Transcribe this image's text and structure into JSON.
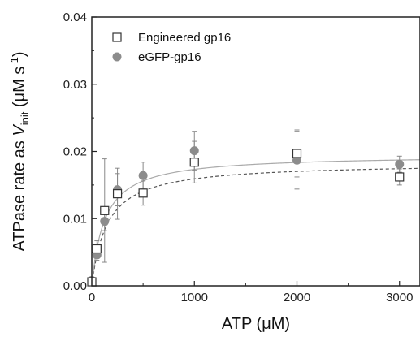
{
  "chart_data": {
    "type": "scatter",
    "xlabel_prefix": "ATP (",
    "xlabel_unit": "μM",
    "xlabel_suffix": ")",
    "ylabel_prefix": "ATPase rate as ",
    "ylabel_var": "V",
    "ylabel_sub": "init",
    "ylabel_unit_open": " (μM s",
    "ylabel_unit_sup": "-1",
    "ylabel_unit_close": ")",
    "xlim": [
      0,
      3200
    ],
    "ylim": [
      0,
      0.04
    ],
    "x_ticks": [
      0,
      1000,
      2000,
      3000
    ],
    "x_tick_labels": [
      "0",
      "1000",
      "2000",
      "3000"
    ],
    "y_ticks": [
      0,
      0.01,
      0.02,
      0.03,
      0.04
    ],
    "y_tick_labels": [
      "0.00",
      "0.01",
      "0.02",
      "0.03",
      "0.04"
    ],
    "legend_position": "top-left",
    "series": [
      {
        "name": "Engineered gp16",
        "marker": "open-square",
        "color": "#333333",
        "fit_color": "#555555",
        "fit_style": "dashed",
        "fit": {
          "vmax": 0.0183,
          "km": 150
        },
        "points": [
          {
            "x": 0,
            "y": 0.0006,
            "err": 0
          },
          {
            "x": 50,
            "y": 0.0055,
            "err": 0.0012
          },
          {
            "x": 125,
            "y": 0.0112,
            "err": 0.0077
          },
          {
            "x": 250,
            "y": 0.0137,
            "err": 0.0038
          },
          {
            "x": 500,
            "y": 0.0138,
            "err": 0.0018
          },
          {
            "x": 1000,
            "y": 0.0184,
            "err": 0.0031
          },
          {
            "x": 2000,
            "y": 0.0197,
            "err": 0.0035
          },
          {
            "x": 3000,
            "y": 0.0162,
            "err": 0.0012
          }
        ]
      },
      {
        "name": "eGFP-gp16",
        "marker": "filled-circle",
        "color": "#8c8c8c",
        "fit_color": "#aaaaaa",
        "fit_style": "solid",
        "fit": {
          "vmax": 0.0195,
          "km": 125
        },
        "points": [
          {
            "x": 0,
            "y": 0.0008,
            "err": 0
          },
          {
            "x": 50,
            "y": 0.0046,
            "err": 0.0008
          },
          {
            "x": 125,
            "y": 0.0096,
            "err": 0.0014
          },
          {
            "x": 250,
            "y": 0.0143,
            "err": 0.0024
          },
          {
            "x": 500,
            "y": 0.0164,
            "err": 0.002
          },
          {
            "x": 1000,
            "y": 0.0201,
            "err": 0.0029
          },
          {
            "x": 2000,
            "y": 0.0187,
            "err": 0.0043
          },
          {
            "x": 3000,
            "y": 0.0181,
            "err": 0.0012
          }
        ]
      }
    ]
  }
}
